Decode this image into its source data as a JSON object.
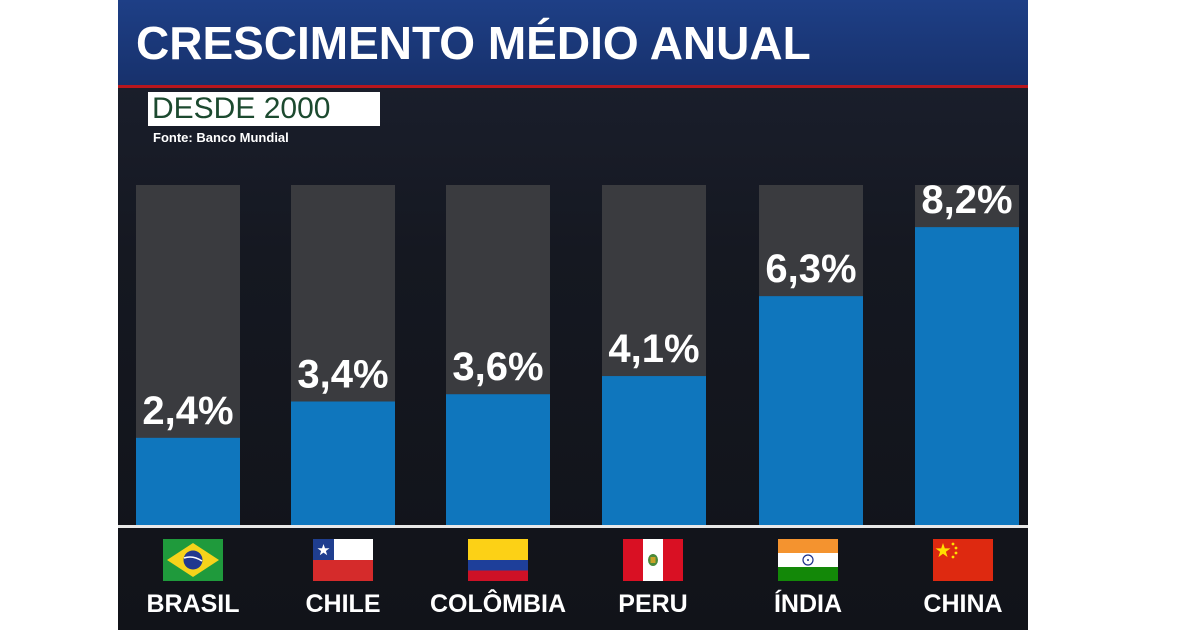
{
  "header": {
    "title": "CRESCIMENTO MÉDIO ANUAL",
    "subtitle": "DESDE 2000",
    "source": "Fonte: Banco Mundial"
  },
  "colors": {
    "header_bg": "#1a3a7c",
    "accent_rule": "#b8161d",
    "bar_fill": "#0f76bd",
    "bar_track": "#3a3b3f",
    "background": "#151821"
  },
  "chart_data": {
    "type": "bar",
    "title": "CRESCIMENTO MÉDIO ANUAL",
    "subtitle": "DESDE 2000",
    "categories": [
      "BRASIL",
      "CHILE",
      "COLÔMBIA",
      "PERU",
      "ÍNDIA",
      "CHINA"
    ],
    "values": [
      2.4,
      3.4,
      3.6,
      4.1,
      6.3,
      8.2
    ],
    "value_labels": [
      "2,4%",
      "3,4%",
      "3,6%",
      "4,1%",
      "6,3%",
      "8,2%"
    ],
    "ylim": [
      0,
      9.36
    ],
    "grid": false,
    "legend": "none"
  },
  "flags": [
    {
      "country": "BRASIL",
      "icon": "brazil-flag-icon"
    },
    {
      "country": "CHILE",
      "icon": "chile-flag-icon"
    },
    {
      "country": "COLÔMBIA",
      "icon": "colombia-flag-icon"
    },
    {
      "country": "PERU",
      "icon": "peru-flag-icon"
    },
    {
      "country": "ÍNDIA",
      "icon": "india-flag-icon"
    },
    {
      "country": "CHINA",
      "icon": "china-flag-icon"
    }
  ]
}
